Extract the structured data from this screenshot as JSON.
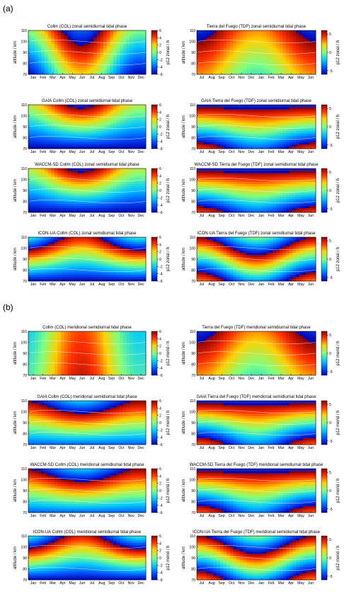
{
  "figure": {
    "section_labels": [
      "(a)",
      "(b)"
    ]
  },
  "axes_defaults": {
    "ylabel": "altitude / km",
    "yticks": [
      70,
      80,
      90,
      100,
      110
    ],
    "ylim": [
      70,
      110
    ]
  },
  "chart_data": [
    {
      "type": "heatmap",
      "panel_id": "a-col-0",
      "title": "Collm (COL) zonal semidiurnal tidal phase",
      "section": "a",
      "site": "COL",
      "component": "zonal",
      "model": "obs",
      "x": [
        "Jan",
        "Feb",
        "Mar",
        "Apr",
        "May",
        "Jun",
        "Jul",
        "Aug",
        "Sep",
        "Oct",
        "Nov",
        "Dec"
      ],
      "ylim": [
        70,
        110
      ],
      "colorbar": {
        "label": "p12 zonal / h",
        "ticks": [
          -6,
          -4,
          -2,
          0,
          2,
          4,
          6
        ],
        "range": [
          -6,
          6
        ]
      }
    },
    {
      "type": "heatmap",
      "panel_id": "a-tdf-0",
      "title": "Tierra del Fuego (TDF) zonal semidiurnal tidal phase",
      "section": "a",
      "site": "TDF",
      "component": "zonal",
      "model": "obs",
      "x": [
        "Jul",
        "Aug",
        "Sep",
        "Oct",
        "Nov",
        "Dec",
        "Jan",
        "Feb",
        "Mar",
        "Apr",
        "May",
        "Jun"
      ],
      "ylim": [
        70,
        110
      ],
      "colorbar": {
        "label": "p12 zonal / h",
        "ticks": [
          -5,
          0,
          5
        ],
        "range": [
          -6,
          6
        ]
      }
    },
    {
      "type": "heatmap",
      "panel_id": "a-col-1",
      "title": "GAIA Collm (COL) zonal semidiurnal tidal phase",
      "section": "a",
      "site": "COL",
      "component": "zonal",
      "model": "gaia",
      "x": [
        "Jan",
        "Feb",
        "Mar",
        "Apr",
        "May",
        "Jun",
        "Jul",
        "Aug",
        "Sep",
        "Oct",
        "Nov",
        "Dec"
      ],
      "ylim": [
        70,
        110
      ],
      "colorbar": {
        "label": "p12 zonal / h",
        "ticks": [
          -6,
          -4,
          -2,
          0,
          2,
          4,
          6
        ],
        "range": [
          -6,
          6
        ]
      }
    },
    {
      "type": "heatmap",
      "panel_id": "a-tdf-1",
      "title": "GAIA Tierra del Fuego (TDF) zonal semidiurnal tidal phase",
      "section": "a",
      "site": "TDF",
      "component": "zonal",
      "model": "gaia",
      "x": [
        "Jul",
        "Aug",
        "Sep",
        "Oct",
        "Nov",
        "Dec",
        "Jan",
        "Feb",
        "Mar",
        "Apr",
        "May",
        "Jun"
      ],
      "ylim": [
        70,
        110
      ],
      "colorbar": {
        "label": "p12 zonal / h",
        "ticks": [
          -5,
          0,
          5
        ],
        "range": [
          -6,
          6
        ]
      }
    },
    {
      "type": "heatmap",
      "panel_id": "a-col-2",
      "title": "WACCM-SD Collm (COL)  zonal semidiurnal tidal phase",
      "section": "a",
      "site": "COL",
      "component": "zonal",
      "model": "waccm",
      "x": [
        "Jan",
        "Feb",
        "Mar",
        "Apr",
        "May",
        "Jun",
        "Jul",
        "Aug",
        "Sep",
        "Oct",
        "Nov",
        "Dec"
      ],
      "ylim": [
        70,
        110
      ],
      "colorbar": {
        "label": "p12 zonal / h",
        "ticks": [
          -6,
          -4,
          -2,
          0,
          2,
          4,
          6
        ],
        "range": [
          -6,
          6
        ]
      }
    },
    {
      "type": "heatmap",
      "panel_id": "a-tdf-2",
      "title": "WACCM-SD Tierra del Fuego (TDF) zonal semidiurnal tidal phase",
      "section": "a",
      "site": "TDF",
      "component": "zonal",
      "model": "waccm",
      "x": [
        "Jul",
        "Aug",
        "Sep",
        "Oct",
        "Nov",
        "Dec",
        "Jan",
        "Feb",
        "Mar",
        "Apr",
        "May",
        "Jun"
      ],
      "ylim": [
        70,
        110
      ],
      "colorbar": {
        "label": "p12 zonal / h",
        "ticks": [
          -5,
          0,
          5
        ],
        "range": [
          -6,
          6
        ]
      }
    },
    {
      "type": "heatmap",
      "panel_id": "a-col-3",
      "title": "ICON-UA Collm (COL)  zonal semidiurnal tidal phase",
      "section": "a",
      "site": "COL",
      "component": "zonal",
      "model": "icon",
      "x": [
        "Jan",
        "Feb",
        "Mar",
        "Apr",
        "May",
        "Jun",
        "Jul",
        "Aug",
        "Sep",
        "Oct",
        "Nov",
        "Dec"
      ],
      "ylim": [
        70,
        110
      ],
      "colorbar": {
        "label": "p12 zonal / h",
        "ticks": [
          -6,
          -4,
          -2,
          0,
          2,
          4,
          6
        ],
        "range": [
          -6,
          6
        ]
      }
    },
    {
      "type": "heatmap",
      "panel_id": "a-tdf-3",
      "title": "ICON-UA Tierra del Fuego (TDF) zonal semidiurnal tidal phase",
      "section": "a",
      "site": "TDF",
      "component": "zonal",
      "model": "icon",
      "x": [
        "Jul",
        "Aug",
        "Sep",
        "Oct",
        "Nov",
        "Dec",
        "Jan",
        "Feb",
        "Mar",
        "Apr",
        "May",
        "Jun"
      ],
      "ylim": [
        70,
        110
      ],
      "colorbar": {
        "label": "p12 zonal / h",
        "ticks": [
          -5,
          0,
          5
        ],
        "range": [
          -6,
          6
        ]
      }
    },
    {
      "type": "heatmap",
      "panel_id": "b-col-0",
      "title": "Collm (COL) meridional semidiurnal tidal phase",
      "section": "b",
      "site": "COL",
      "component": "merid",
      "model": "obs",
      "x": [
        "Jan",
        "Feb",
        "Mar",
        "Apr",
        "May",
        "Jun",
        "Jul",
        "Aug",
        "Sep",
        "Oct",
        "Nov",
        "Dec"
      ],
      "ylim": [
        70,
        110
      ],
      "colorbar": {
        "label": "p12 merid / h",
        "ticks": [
          -6,
          -4,
          -2,
          0,
          2,
          4,
          6
        ],
        "range": [
          -6,
          6
        ]
      }
    },
    {
      "type": "heatmap",
      "panel_id": "b-tdf-0",
      "title": "Tierra del Fuego (TDF) meridional semidiurnal tidal phase",
      "section": "b",
      "site": "TDF",
      "component": "merid",
      "model": "obs",
      "x": [
        "Jul",
        "Aug",
        "Sep",
        "Oct",
        "Nov",
        "Dec",
        "Jan",
        "Feb",
        "Mar",
        "Apr",
        "May",
        "Jun"
      ],
      "ylim": [
        70,
        110
      ],
      "colorbar": {
        "label": "p12 merid / h",
        "ticks": [
          -5,
          0,
          5
        ],
        "range": [
          -6,
          6
        ]
      }
    },
    {
      "type": "heatmap",
      "panel_id": "b-col-1",
      "title": "GAIA Collm (COL) meridional semidiurnal tidal phase",
      "section": "b",
      "site": "COL",
      "component": "merid",
      "model": "gaia",
      "x": [
        "Jan",
        "Feb",
        "Mar",
        "Apr",
        "May",
        "Jun",
        "Jul",
        "Aug",
        "Sep",
        "Oct",
        "Nov",
        "Dec"
      ],
      "ylim": [
        70,
        110
      ],
      "colorbar": {
        "label": "p12 merid / h",
        "ticks": [
          -6,
          -4,
          -2,
          0,
          2,
          4,
          6
        ],
        "range": [
          -6,
          6
        ]
      }
    },
    {
      "type": "heatmap",
      "panel_id": "b-tdf-1",
      "title": "GAIA Tierra del Fuego (TDF) meridional semidiurnal tidal phase",
      "section": "b",
      "site": "TDF",
      "component": "merid",
      "model": "gaia",
      "x": [
        "Jul",
        "Aug",
        "Sep",
        "Oct",
        "Nov",
        "Dec",
        "Jan",
        "Feb",
        "Mar",
        "Apr",
        "May",
        "Jun"
      ],
      "ylim": [
        70,
        110
      ],
      "colorbar": {
        "label": "p12 merid / h",
        "ticks": [
          -5,
          0,
          5
        ],
        "range": [
          -6,
          6
        ]
      }
    },
    {
      "type": "heatmap",
      "panel_id": "b-col-2",
      "title": "WACCM-SD Collm (COL)  meridional semidiurnal tidal phase",
      "section": "b",
      "site": "COL",
      "component": "merid",
      "model": "waccm",
      "x": [
        "Jan",
        "Feb",
        "Mar",
        "Apr",
        "May",
        "Jun",
        "Jul",
        "Aug",
        "Sep",
        "Oct",
        "Nov",
        "Dec"
      ],
      "ylim": [
        70,
        110
      ],
      "colorbar": {
        "label": "p12 merid / h",
        "ticks": [
          -6,
          -4,
          -2,
          0,
          2,
          4,
          6
        ],
        "range": [
          -6,
          6
        ]
      }
    },
    {
      "type": "heatmap",
      "panel_id": "b-tdf-2",
      "title": "WACCM-SD Tierra del Fuego (TDF) meridional semidiurnal tidal phase",
      "section": "b",
      "site": "TDF",
      "component": "merid",
      "model": "waccm",
      "x": [
        "Jul",
        "Aug",
        "Sep",
        "Oct",
        "Nov",
        "Dec",
        "Jan",
        "Feb",
        "Mar",
        "Apr",
        "May",
        "Jun"
      ],
      "ylim": [
        70,
        110
      ],
      "colorbar": {
        "label": "p12 merid / h",
        "ticks": [
          -5,
          0,
          5
        ],
        "range": [
          -6,
          6
        ]
      }
    },
    {
      "type": "heatmap",
      "panel_id": "b-col-3",
      "title": "ICON-UA Collm (COL) meridional semidiurnal tidal phase",
      "section": "b",
      "site": "COL",
      "component": "merid",
      "model": "icon",
      "x": [
        "Jan",
        "Feb",
        "Mar",
        "Apr",
        "May",
        "Jun",
        "Jul",
        "Aug",
        "Sep",
        "Oct",
        "Nov",
        "Dec"
      ],
      "ylim": [
        70,
        110
      ],
      "colorbar": {
        "label": "p12 merid / h",
        "ticks": [
          -6,
          -4,
          -2,
          0,
          2,
          4,
          6
        ],
        "range": [
          -6,
          6
        ]
      }
    },
    {
      "type": "heatmap",
      "panel_id": "b-tdf-3",
      "title": "ICON-UA Tierra del Fuego (TDF) meridional semidiurnal tidal phase",
      "section": "b",
      "site": "TDF",
      "component": "merid",
      "model": "icon",
      "x": [
        "Jul",
        "Aug",
        "Sep",
        "Oct",
        "Nov",
        "Dec",
        "Jan",
        "Feb",
        "Mar",
        "Apr",
        "May",
        "Jun"
      ],
      "ylim": [
        70,
        110
      ],
      "colorbar": {
        "label": "p12 merid / h",
        "ticks": [
          -5,
          0,
          5
        ],
        "range": [
          -6,
          6
        ]
      }
    }
  ]
}
